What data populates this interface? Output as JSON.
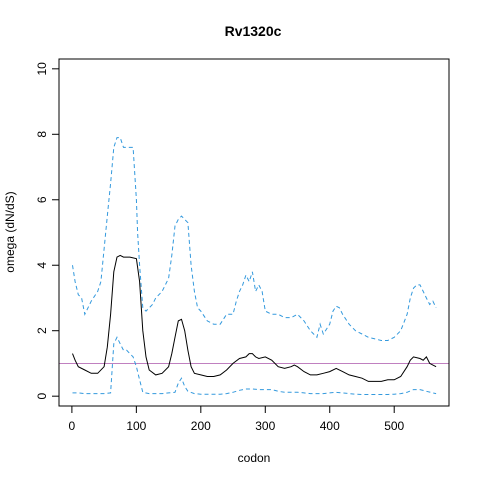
{
  "chart_data": {
    "type": "line",
    "title": "Rv1320c",
    "xlabel": "codon",
    "ylabel": "omega (dN/dS)",
    "xlim": [
      -20,
      585
    ],
    "ylim": [
      -0.3,
      10.3
    ],
    "xticks": [
      0,
      100,
      200,
      300,
      400,
      500
    ],
    "yticks": [
      0,
      2,
      4,
      6,
      8,
      10
    ],
    "reference_line": {
      "y": 1,
      "color": "#c080c0"
    },
    "series": [
      {
        "style": "solid",
        "color": "#000000",
        "x": [
          1,
          5,
          10,
          20,
          30,
          40,
          50,
          55,
          60,
          65,
          70,
          75,
          80,
          90,
          100,
          105,
          110,
          115,
          120,
          130,
          140,
          150,
          155,
          160,
          165,
          170,
          175,
          180,
          185,
          190,
          200,
          210,
          220,
          230,
          240,
          250,
          260,
          270,
          275,
          280,
          285,
          290,
          300,
          310,
          320,
          330,
          340,
          345,
          350,
          360,
          370,
          380,
          390,
          400,
          410,
          420,
          430,
          440,
          450,
          460,
          470,
          480,
          490,
          500,
          510,
          520,
          525,
          530,
          540,
          545,
          550,
          555,
          560,
          565
        ],
        "y": [
          1.3,
          1.1,
          0.9,
          0.8,
          0.7,
          0.7,
          0.9,
          1.5,
          2.5,
          3.8,
          4.25,
          4.3,
          4.25,
          4.25,
          4.2,
          3.5,
          2.0,
          1.2,
          0.8,
          0.65,
          0.7,
          0.9,
          1.3,
          1.8,
          2.3,
          2.35,
          2.0,
          1.4,
          0.9,
          0.7,
          0.65,
          0.6,
          0.6,
          0.65,
          0.8,
          1.0,
          1.15,
          1.2,
          1.3,
          1.3,
          1.2,
          1.15,
          1.2,
          1.1,
          0.9,
          0.85,
          0.9,
          0.95,
          0.9,
          0.75,
          0.65,
          0.65,
          0.7,
          0.75,
          0.85,
          0.75,
          0.65,
          0.6,
          0.55,
          0.45,
          0.45,
          0.45,
          0.5,
          0.5,
          0.6,
          0.9,
          1.1,
          1.2,
          1.15,
          1.1,
          1.2,
          1.0,
          0.95,
          0.9
        ]
      },
      {
        "style": "dashed",
        "color": "#3399dd",
        "x": [
          1,
          5,
          10,
          15,
          20,
          25,
          30,
          40,
          45,
          50,
          55,
          60,
          65,
          70,
          75,
          80,
          85,
          90,
          95,
          100,
          102,
          105,
          110,
          115,
          120,
          125,
          130,
          140,
          150,
          155,
          160,
          165,
          170,
          175,
          180,
          185,
          190,
          195,
          200,
          210,
          220,
          230,
          240,
          250,
          255,
          260,
          265,
          270,
          275,
          280,
          285,
          290,
          295,
          300,
          310,
          320,
          330,
          340,
          350,
          360,
          370,
          375,
          380,
          385,
          390,
          400,
          405,
          410,
          415,
          420,
          430,
          440,
          450,
          460,
          470,
          480,
          490,
          500,
          510,
          520,
          525,
          530,
          535,
          540,
          545,
          550,
          555,
          560,
          565
        ],
        "y": [
          4.0,
          3.5,
          3.1,
          3.0,
          2.5,
          2.7,
          2.9,
          3.2,
          3.5,
          4.5,
          5.5,
          6.5,
          7.6,
          7.9,
          7.9,
          7.6,
          7.6,
          7.6,
          7.6,
          6.0,
          5.0,
          4.0,
          2.7,
          2.6,
          2.7,
          2.8,
          3.0,
          3.2,
          3.6,
          4.3,
          5.2,
          5.4,
          5.5,
          5.4,
          5.3,
          4.0,
          3.2,
          2.7,
          2.6,
          2.3,
          2.2,
          2.2,
          2.5,
          2.5,
          2.9,
          3.2,
          3.4,
          3.7,
          3.5,
          3.8,
          3.2,
          3.4,
          3.2,
          2.6,
          2.5,
          2.5,
          2.4,
          2.4,
          2.5,
          2.3,
          2.0,
          1.9,
          1.8,
          2.2,
          1.9,
          2.2,
          2.6,
          2.75,
          2.7,
          2.5,
          2.2,
          2.0,
          1.9,
          1.8,
          1.75,
          1.7,
          1.7,
          1.8,
          2.0,
          2.5,
          3.0,
          3.3,
          3.4,
          3.4,
          3.2,
          3.0,
          2.8,
          2.9,
          2.7
        ]
      },
      {
        "style": "dashed",
        "color": "#3399dd",
        "x": [
          1,
          10,
          20,
          30,
          40,
          50,
          60,
          65,
          70,
          75,
          80,
          85,
          90,
          95,
          100,
          105,
          110,
          120,
          130,
          140,
          150,
          160,
          165,
          170,
          175,
          180,
          190,
          200,
          210,
          220,
          230,
          240,
          250,
          260,
          270,
          280,
          290,
          300,
          310,
          320,
          330,
          340,
          350,
          360,
          370,
          380,
          390,
          400,
          410,
          420,
          430,
          440,
          450,
          460,
          470,
          480,
          490,
          500,
          510,
          520,
          530,
          540,
          550,
          560,
          565
        ],
        "y": [
          0.1,
          0.1,
          0.08,
          0.08,
          0.08,
          0.08,
          0.1,
          1.6,
          1.8,
          1.6,
          1.4,
          1.4,
          1.3,
          1.2,
          0.9,
          0.5,
          0.12,
          0.08,
          0.08,
          0.08,
          0.1,
          0.12,
          0.4,
          0.55,
          0.3,
          0.15,
          0.08,
          0.06,
          0.06,
          0.06,
          0.06,
          0.08,
          0.12,
          0.18,
          0.22,
          0.22,
          0.2,
          0.2,
          0.2,
          0.15,
          0.12,
          0.12,
          0.12,
          0.1,
          0.08,
          0.08,
          0.08,
          0.1,
          0.12,
          0.1,
          0.08,
          0.06,
          0.05,
          0.05,
          0.05,
          0.05,
          0.05,
          0.06,
          0.08,
          0.12,
          0.2,
          0.2,
          0.15,
          0.1,
          0.08
        ]
      }
    ]
  }
}
